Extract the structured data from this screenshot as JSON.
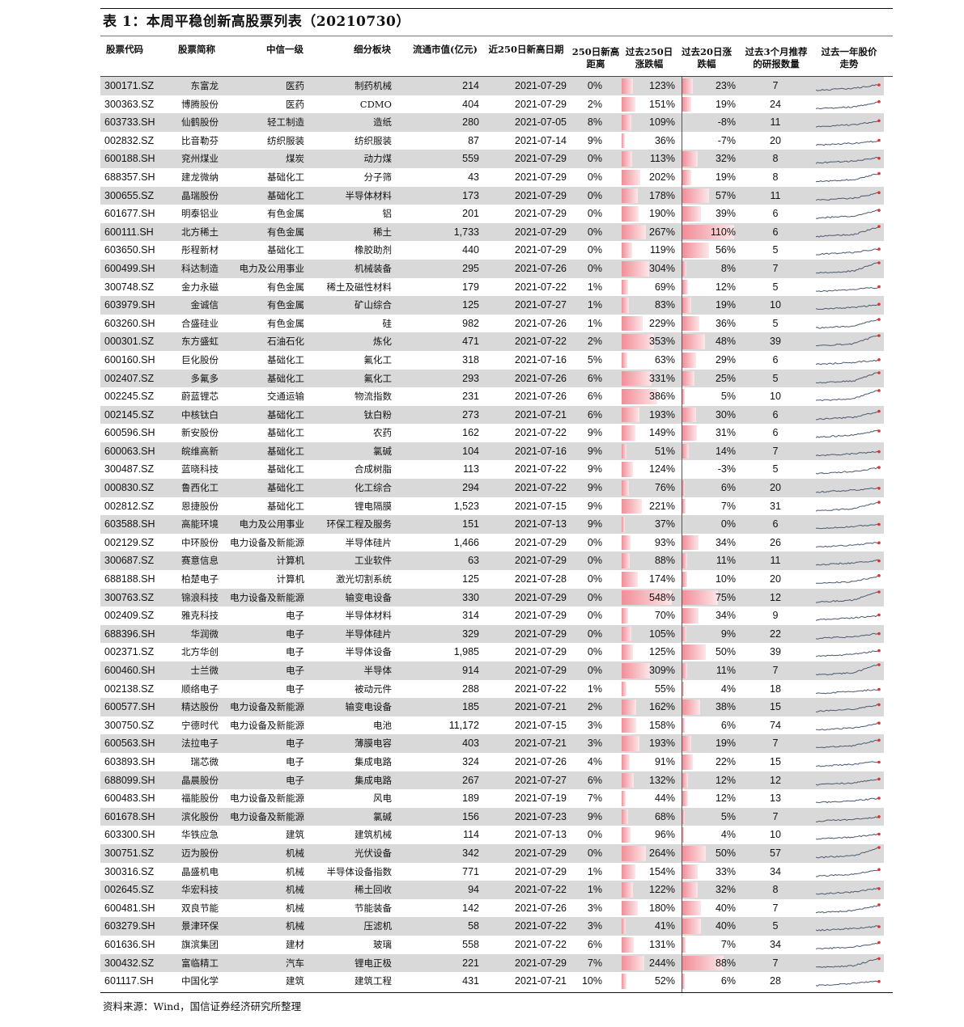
{
  "title": "表 1：本周平稳创新高股票列表（20210730）",
  "headers": {
    "code": "股票代码",
    "name": "股票简称",
    "industry": "中信一级",
    "sub": "细分板块",
    "cap": "流通市值(亿元)",
    "date": "近250日新高日期",
    "dist_l1": "250日新高",
    "dist_l2": "距离",
    "r250_l1": "过去250日",
    "r250_l2": "涨跌幅",
    "r20_l1": "过去20日涨",
    "r20_l2": "跌幅",
    "rep_l1": "过去3个月推荐",
    "rep_l2": "的研报数量",
    "spark_l1": "过去一年股价",
    "spark_l2": "走势"
  },
  "rows": [
    {
      "code": "300171.SZ",
      "name": "东富龙",
      "industry": "医药",
      "sub": "制药机械",
      "cap": "214",
      "date": "2021-07-29",
      "dist": "0%",
      "r250": "123%",
      "r20": "23%",
      "rep": "7"
    },
    {
      "code": "300363.SZ",
      "name": "博腾股份",
      "industry": "医药",
      "sub": "CDMO",
      "cap": "404",
      "date": "2021-07-29",
      "dist": "2%",
      "r250": "151%",
      "r20": "19%",
      "rep": "24"
    },
    {
      "code": "603733.SH",
      "name": "仙鹤股份",
      "industry": "轻工制造",
      "sub": "造纸",
      "cap": "280",
      "date": "2021-07-05",
      "dist": "8%",
      "r250": "109%",
      "r20": "-8%",
      "rep": "11"
    },
    {
      "code": "002832.SZ",
      "name": "比音勒芬",
      "industry": "纺织服装",
      "sub": "纺织服装",
      "cap": "87",
      "date": "2021-07-14",
      "dist": "9%",
      "r250": "36%",
      "r20": "-7%",
      "rep": "20"
    },
    {
      "code": "600188.SH",
      "name": "兖州煤业",
      "industry": "煤炭",
      "sub": "动力煤",
      "cap": "559",
      "date": "2021-07-29",
      "dist": "0%",
      "r250": "113%",
      "r20": "32%",
      "rep": "8"
    },
    {
      "code": "688357.SH",
      "name": "建龙微纳",
      "industry": "基础化工",
      "sub": "分子筛",
      "cap": "43",
      "date": "2021-07-29",
      "dist": "0%",
      "r250": "202%",
      "r20": "19%",
      "rep": "8"
    },
    {
      "code": "300655.SZ",
      "name": "晶瑞股份",
      "industry": "基础化工",
      "sub": "半导体材料",
      "cap": "173",
      "date": "2021-07-29",
      "dist": "0%",
      "r250": "178%",
      "r20": "57%",
      "rep": "11"
    },
    {
      "code": "601677.SH",
      "name": "明泰铝业",
      "industry": "有色金属",
      "sub": "铝",
      "cap": "201",
      "date": "2021-07-29",
      "dist": "0%",
      "r250": "190%",
      "r20": "39%",
      "rep": "6"
    },
    {
      "code": "600111.SH",
      "name": "北方稀土",
      "industry": "有色金属",
      "sub": "稀土",
      "cap": "1,733",
      "date": "2021-07-29",
      "dist": "0%",
      "r250": "267%",
      "r20": "110%",
      "rep": "6"
    },
    {
      "code": "603650.SH",
      "name": "彤程新材",
      "industry": "基础化工",
      "sub": "橡胶助剂",
      "cap": "440",
      "date": "2021-07-29",
      "dist": "0%",
      "r250": "119%",
      "r20": "56%",
      "rep": "5"
    },
    {
      "code": "600499.SH",
      "name": "科达制造",
      "industry": "电力及公用事业",
      "sub": "机械装备",
      "cap": "295",
      "date": "2021-07-26",
      "dist": "0%",
      "r250": "304%",
      "r20": "8%",
      "rep": "7"
    },
    {
      "code": "300748.SZ",
      "name": "金力永磁",
      "industry": "有色金属",
      "sub": "稀土及磁性材料",
      "cap": "179",
      "date": "2021-07-22",
      "dist": "1%",
      "r250": "69%",
      "r20": "12%",
      "rep": "5"
    },
    {
      "code": "603979.SH",
      "name": "金诚信",
      "industry": "有色金属",
      "sub": "矿山综合",
      "cap": "125",
      "date": "2021-07-27",
      "dist": "1%",
      "r250": "83%",
      "r20": "19%",
      "rep": "10"
    },
    {
      "code": "603260.SH",
      "name": "合盛硅业",
      "industry": "有色金属",
      "sub": "硅",
      "cap": "982",
      "date": "2021-07-26",
      "dist": "1%",
      "r250": "229%",
      "r20": "36%",
      "rep": "5"
    },
    {
      "code": "000301.SZ",
      "name": "东方盛虹",
      "industry": "石油石化",
      "sub": "炼化",
      "cap": "471",
      "date": "2021-07-22",
      "dist": "2%",
      "r250": "353%",
      "r20": "48%",
      "rep": "39"
    },
    {
      "code": "600160.SH",
      "name": "巨化股份",
      "industry": "基础化工",
      "sub": "氟化工",
      "cap": "318",
      "date": "2021-07-16",
      "dist": "5%",
      "r250": "63%",
      "r20": "29%",
      "rep": "6"
    },
    {
      "code": "002407.SZ",
      "name": "多氟多",
      "industry": "基础化工",
      "sub": "氟化工",
      "cap": "293",
      "date": "2021-07-26",
      "dist": "6%",
      "r250": "331%",
      "r20": "25%",
      "rep": "5"
    },
    {
      "code": "002245.SZ",
      "name": "蔚蓝锂芯",
      "industry": "交通运输",
      "sub": "物流指数",
      "cap": "231",
      "date": "2021-07-26",
      "dist": "6%",
      "r250": "386%",
      "r20": "5%",
      "rep": "10"
    },
    {
      "code": "002145.SZ",
      "name": "中核钛白",
      "industry": "基础化工",
      "sub": "钛白粉",
      "cap": "273",
      "date": "2021-07-21",
      "dist": "6%",
      "r250": "193%",
      "r20": "30%",
      "rep": "6"
    },
    {
      "code": "600596.SH",
      "name": "新安股份",
      "industry": "基础化工",
      "sub": "农药",
      "cap": "162",
      "date": "2021-07-22",
      "dist": "9%",
      "r250": "149%",
      "r20": "31%",
      "rep": "6"
    },
    {
      "code": "600063.SH",
      "name": "皖维高新",
      "industry": "基础化工",
      "sub": "氯碱",
      "cap": "104",
      "date": "2021-07-16",
      "dist": "9%",
      "r250": "51%",
      "r20": "14%",
      "rep": "7"
    },
    {
      "code": "300487.SZ",
      "name": "蓝晓科技",
      "industry": "基础化工",
      "sub": "合成树脂",
      "cap": "113",
      "date": "2021-07-22",
      "dist": "9%",
      "r250": "124%",
      "r20": "-3%",
      "rep": "5"
    },
    {
      "code": "000830.SZ",
      "name": "鲁西化工",
      "industry": "基础化工",
      "sub": "化工综合",
      "cap": "294",
      "date": "2021-07-22",
      "dist": "9%",
      "r250": "76%",
      "r20": "6%",
      "rep": "20"
    },
    {
      "code": "002812.SZ",
      "name": "恩捷股份",
      "industry": "基础化工",
      "sub": "锂电隔膜",
      "cap": "1,523",
      "date": "2021-07-15",
      "dist": "9%",
      "r250": "221%",
      "r20": "7%",
      "rep": "31"
    },
    {
      "code": "603588.SH",
      "name": "高能环境",
      "industry": "电力及公用事业",
      "sub": "环保工程及服务",
      "cap": "151",
      "date": "2021-07-13",
      "dist": "9%",
      "r250": "37%",
      "r20": "0%",
      "rep": "6"
    },
    {
      "code": "002129.SZ",
      "name": "中环股份",
      "industry": "电力设备及新能源",
      "sub": "半导体硅片",
      "cap": "1,466",
      "date": "2021-07-29",
      "dist": "0%",
      "r250": "93%",
      "r20": "34%",
      "rep": "26"
    },
    {
      "code": "300687.SZ",
      "name": "赛意信息",
      "industry": "计算机",
      "sub": "工业软件",
      "cap": "63",
      "date": "2021-07-29",
      "dist": "0%",
      "r250": "88%",
      "r20": "11%",
      "rep": "11"
    },
    {
      "code": "688188.SH",
      "name": "柏楚电子",
      "industry": "计算机",
      "sub": "激光切割系统",
      "cap": "125",
      "date": "2021-07-28",
      "dist": "0%",
      "r250": "174%",
      "r20": "10%",
      "rep": "20"
    },
    {
      "code": "300763.SZ",
      "name": "锦浪科技",
      "industry": "电力设备及新能源",
      "sub": "输变电设备",
      "cap": "330",
      "date": "2021-07-29",
      "dist": "0%",
      "r250": "548%",
      "r20": "75%",
      "rep": "12"
    },
    {
      "code": "002409.SZ",
      "name": "雅克科技",
      "industry": "电子",
      "sub": "半导体材料",
      "cap": "314",
      "date": "2021-07-29",
      "dist": "0%",
      "r250": "70%",
      "r20": "34%",
      "rep": "9"
    },
    {
      "code": "688396.SH",
      "name": "华润微",
      "industry": "电子",
      "sub": "半导体硅片",
      "cap": "329",
      "date": "2021-07-29",
      "dist": "0%",
      "r250": "105%",
      "r20": "9%",
      "rep": "22"
    },
    {
      "code": "002371.SZ",
      "name": "北方华创",
      "industry": "电子",
      "sub": "半导体设备",
      "cap": "1,985",
      "date": "2021-07-29",
      "dist": "0%",
      "r250": "125%",
      "r20": "50%",
      "rep": "39"
    },
    {
      "code": "600460.SH",
      "name": "士兰微",
      "industry": "电子",
      "sub": "半导体",
      "cap": "914",
      "date": "2021-07-29",
      "dist": "0%",
      "r250": "309%",
      "r20": "11%",
      "rep": "7"
    },
    {
      "code": "002138.SZ",
      "name": "顺络电子",
      "industry": "电子",
      "sub": "被动元件",
      "cap": "288",
      "date": "2021-07-22",
      "dist": "1%",
      "r250": "55%",
      "r20": "4%",
      "rep": "18"
    },
    {
      "code": "600577.SH",
      "name": "精达股份",
      "industry": "电力设备及新能源",
      "sub": "输变电设备",
      "cap": "185",
      "date": "2021-07-21",
      "dist": "2%",
      "r250": "162%",
      "r20": "38%",
      "rep": "15"
    },
    {
      "code": "300750.SZ",
      "name": "宁德时代",
      "industry": "电力设备及新能源",
      "sub": "电池",
      "cap": "11,172",
      "date": "2021-07-15",
      "dist": "3%",
      "r250": "158%",
      "r20": "6%",
      "rep": "74"
    },
    {
      "code": "600563.SH",
      "name": "法拉电子",
      "industry": "电子",
      "sub": "薄膜电容",
      "cap": "403",
      "date": "2021-07-21",
      "dist": "3%",
      "r250": "193%",
      "r20": "19%",
      "rep": "7"
    },
    {
      "code": "603893.SH",
      "name": "瑞芯微",
      "industry": "电子",
      "sub": "集成电路",
      "cap": "324",
      "date": "2021-07-26",
      "dist": "4%",
      "r250": "91%",
      "r20": "22%",
      "rep": "15"
    },
    {
      "code": "688099.SH",
      "name": "晶晨股份",
      "industry": "电子",
      "sub": "集成电路",
      "cap": "267",
      "date": "2021-07-27",
      "dist": "6%",
      "r250": "132%",
      "r20": "12%",
      "rep": "12"
    },
    {
      "code": "600483.SH",
      "name": "福能股份",
      "industry": "电力设备及新能源",
      "sub": "风电",
      "cap": "189",
      "date": "2021-07-19",
      "dist": "7%",
      "r250": "44%",
      "r20": "12%",
      "rep": "13"
    },
    {
      "code": "601678.SH",
      "name": "滨化股份",
      "industry": "电力设备及新能源",
      "sub": "氯碱",
      "cap": "156",
      "date": "2021-07-23",
      "dist": "9%",
      "r250": "68%",
      "r20": "5%",
      "rep": "7"
    },
    {
      "code": "603300.SH",
      "name": "华铁应急",
      "industry": "建筑",
      "sub": "建筑机械",
      "cap": "114",
      "date": "2021-07-13",
      "dist": "0%",
      "r250": "96%",
      "r20": "4%",
      "rep": "10"
    },
    {
      "code": "300751.SZ",
      "name": "迈为股份",
      "industry": "机械",
      "sub": "光伏设备",
      "cap": "342",
      "date": "2021-07-29",
      "dist": "0%",
      "r250": "264%",
      "r20": "50%",
      "rep": "57"
    },
    {
      "code": "300316.SZ",
      "name": "晶盛机电",
      "industry": "机械",
      "sub": "半导体设备指数",
      "cap": "771",
      "date": "2021-07-29",
      "dist": "1%",
      "r250": "154%",
      "r20": "33%",
      "rep": "34"
    },
    {
      "code": "002645.SZ",
      "name": "华宏科技",
      "industry": "机械",
      "sub": "稀土回收",
      "cap": "94",
      "date": "2021-07-22",
      "dist": "1%",
      "r250": "122%",
      "r20": "32%",
      "rep": "8"
    },
    {
      "code": "600481.SH",
      "name": "双良节能",
      "industry": "机械",
      "sub": "节能装备",
      "cap": "142",
      "date": "2021-07-26",
      "dist": "3%",
      "r250": "180%",
      "r20": "40%",
      "rep": "7"
    },
    {
      "code": "603279.SH",
      "name": "景津环保",
      "industry": "机械",
      "sub": "压滤机",
      "cap": "58",
      "date": "2021-07-22",
      "dist": "3%",
      "r250": "41%",
      "r20": "40%",
      "rep": "5"
    },
    {
      "code": "601636.SH",
      "name": "旗滨集团",
      "industry": "建材",
      "sub": "玻璃",
      "cap": "558",
      "date": "2021-07-22",
      "dist": "6%",
      "r250": "131%",
      "r20": "7%",
      "rep": "34"
    },
    {
      "code": "300432.SZ",
      "name": "富临精工",
      "industry": "汽车",
      "sub": "锂电正极",
      "cap": "221",
      "date": "2021-07-29",
      "dist": "7%",
      "r250": "244%",
      "r20": "88%",
      "rep": "7"
    },
    {
      "code": "601117.SH",
      "name": "中国化学",
      "industry": "建筑",
      "sub": "建筑工程",
      "cap": "431",
      "date": "2021-07-21",
      "dist": "10%",
      "r250": "52%",
      "r20": "6%",
      "rep": "28"
    }
  ],
  "source": "资料来源：Wind，国信证券经济研究所整理",
  "colors": {
    "bar": "#f28d97",
    "stripe": "#d9d9d9",
    "spark": "#4a5a6e",
    "spark_end": "#e03030"
  }
}
